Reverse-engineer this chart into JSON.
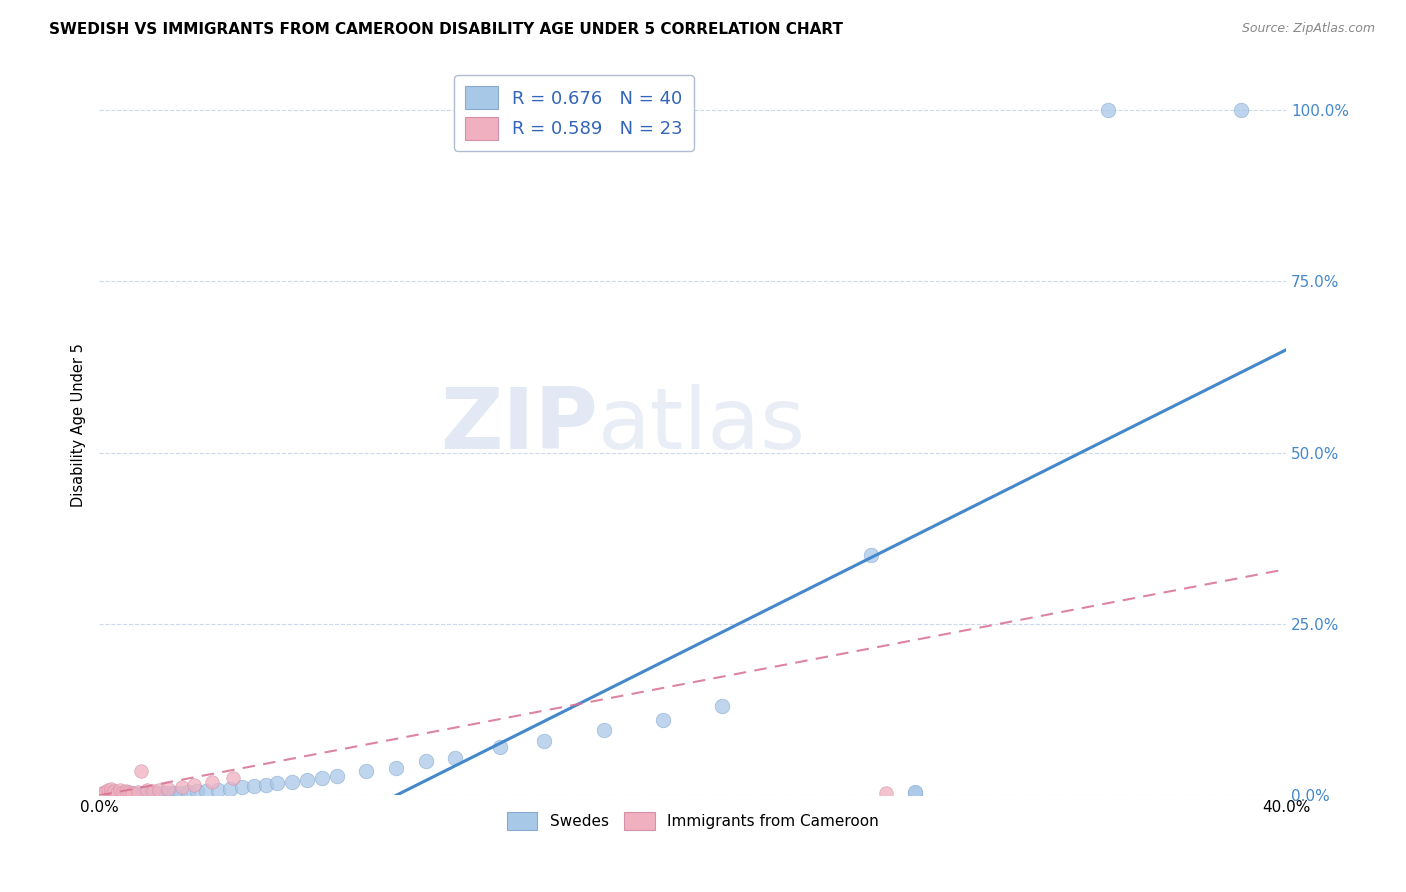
{
  "title": "SWEDISH VS IMMIGRANTS FROM CAMEROON DISABILITY AGE UNDER 5 CORRELATION CHART",
  "source": "Source: ZipAtlas.com",
  "ylabel": "Disability Age Under 5",
  "ytick_labels": [
    "0.0%",
    "25.0%",
    "50.0%",
    "75.0%",
    "100.0%"
  ],
  "ytick_values": [
    0,
    25,
    50,
    75,
    100
  ],
  "xlim": [
    0,
    40
  ],
  "ylim": [
    0,
    108
  ],
  "legend1_R": "0.676",
  "legend1_N": "40",
  "legend2_R": "0.589",
  "legend2_N": "23",
  "legend_swedes": "Swedes",
  "legend_cameroon": "Immigrants from Cameroon",
  "blue_color": "#a8c8e8",
  "pink_color": "#f0b0c0",
  "blue_line_color": "#4488cc",
  "pink_line_color": "#d87090",
  "blue_scatter": [
    [
      0.3,
      0.2
    ],
    [
      0.5,
      0.3
    ],
    [
      0.7,
      0.2
    ],
    [
      0.9,
      0.3
    ],
    [
      1.1,
      0.3
    ],
    [
      1.3,
      0.2
    ],
    [
      1.5,
      0.3
    ],
    [
      1.7,
      0.3
    ],
    [
      1.9,
      0.3
    ],
    [
      2.1,
      0.4
    ],
    [
      2.3,
      0.3
    ],
    [
      2.5,
      0.4
    ],
    [
      2.7,
      0.4
    ],
    [
      3.0,
      0.5
    ],
    [
      3.3,
      0.6
    ],
    [
      3.6,
      0.7
    ],
    [
      4.0,
      0.8
    ],
    [
      4.4,
      1.0
    ],
    [
      4.8,
      1.2
    ],
    [
      5.2,
      1.3
    ],
    [
      5.6,
      1.5
    ],
    [
      6.0,
      1.8
    ],
    [
      6.5,
      2.0
    ],
    [
      7.0,
      2.2
    ],
    [
      7.5,
      2.5
    ],
    [
      8.0,
      2.8
    ],
    [
      9.0,
      3.5
    ],
    [
      10.0,
      4.0
    ],
    [
      11.0,
      5.0
    ],
    [
      12.0,
      5.5
    ],
    [
      13.5,
      7.0
    ],
    [
      15.0,
      8.0
    ],
    [
      17.0,
      9.5
    ],
    [
      19.0,
      11.0
    ],
    [
      21.0,
      13.0
    ],
    [
      26.0,
      35.0
    ],
    [
      27.5,
      0.3
    ],
    [
      27.5,
      0.5
    ],
    [
      34.0,
      100.0
    ],
    [
      38.5,
      100.0
    ]
  ],
  "pink_scatter": [
    [
      0.1,
      0.3
    ],
    [
      0.2,
      0.5
    ],
    [
      0.3,
      0.8
    ],
    [
      0.4,
      0.4
    ],
    [
      0.4,
      1.0
    ],
    [
      0.5,
      0.6
    ],
    [
      0.6,
      0.4
    ],
    [
      0.7,
      0.8
    ],
    [
      0.8,
      0.5
    ],
    [
      0.9,
      0.7
    ],
    [
      1.0,
      0.5
    ],
    [
      1.1,
      0.4
    ],
    [
      1.3,
      0.5
    ],
    [
      1.4,
      3.5
    ],
    [
      1.6,
      0.8
    ],
    [
      1.8,
      0.7
    ],
    [
      2.0,
      0.8
    ],
    [
      2.3,
      1.0
    ],
    [
      2.8,
      1.2
    ],
    [
      3.2,
      1.5
    ],
    [
      3.8,
      2.0
    ],
    [
      4.5,
      2.5
    ],
    [
      26.5,
      0.3
    ]
  ],
  "watermark_ZIP": "ZIP",
  "watermark_atlas": "atlas",
  "background_color": "#ffffff",
  "grid_color": "#c8d4e8"
}
